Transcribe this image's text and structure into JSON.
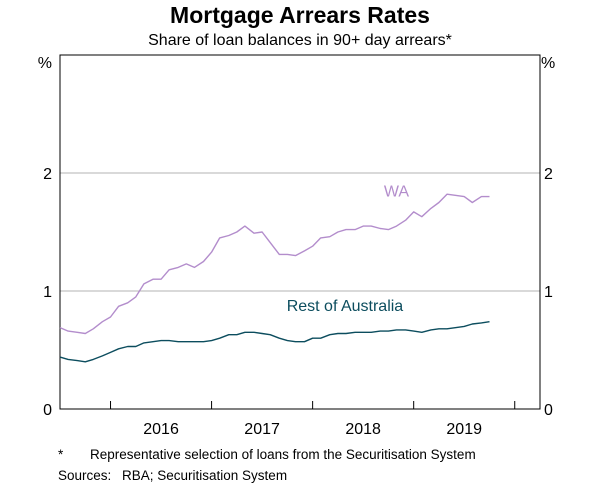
{
  "colors": {
    "wa": "#b38dcc",
    "rest": "#0c4d5e",
    "grid": "#b3b3b3",
    "axis": "#000000"
  },
  "footnote": {
    "marker": "*",
    "text": "Representative selection of loans from the Securitisation System"
  },
  "sources": {
    "label": "Sources:",
    "text": "RBA; Securitisation System"
  },
  "chart_data": {
    "type": "line",
    "title": "Mortgage Arrears Rates",
    "subtitle": "Share of loan balances in 90+ day arrears*",
    "ylabel_left": "%",
    "ylabel_right": "%",
    "ylim": [
      0,
      3
    ],
    "yticks": [
      0,
      1,
      2
    ],
    "ytick_labels": [
      "0",
      "1",
      "2"
    ],
    "xlim": [
      2015.0,
      2019.75
    ],
    "year_labels": [
      {
        "label": "2016",
        "center": 2016.0
      },
      {
        "label": "2017",
        "center": 2017.0
      },
      {
        "label": "2018",
        "center": 2018.0
      },
      {
        "label": "2019",
        "center": 2019.0
      }
    ],
    "xtick_boundaries": [
      2015.5,
      2016.5,
      2017.5,
      2018.5,
      2019.5
    ],
    "gridlines": [
      1,
      2
    ],
    "series": [
      {
        "name": "WA",
        "color": "#b38dcc",
        "x": [
          2015.0,
          2015.08,
          2015.17,
          2015.25,
          2015.33,
          2015.42,
          2015.5,
          2015.58,
          2015.67,
          2015.75,
          2015.83,
          2015.92,
          2016.0,
          2016.08,
          2016.17,
          2016.25,
          2016.33,
          2016.42,
          2016.5,
          2016.58,
          2016.67,
          2016.75,
          2016.83,
          2016.92,
          2017.0,
          2017.08,
          2017.17,
          2017.25,
          2017.33,
          2017.42,
          2017.5,
          2017.58,
          2017.67,
          2017.75,
          2017.83,
          2017.92,
          2018.0,
          2018.08,
          2018.17,
          2018.25,
          2018.33,
          2018.42,
          2018.5,
          2018.58,
          2018.67,
          2018.75,
          2018.83,
          2018.92,
          2019.0,
          2019.08,
          2019.17,
          2019.25
        ],
        "values": [
          0.69,
          0.66,
          0.65,
          0.64,
          0.68,
          0.74,
          0.78,
          0.87,
          0.9,
          0.95,
          1.06,
          1.1,
          1.1,
          1.18,
          1.2,
          1.23,
          1.2,
          1.25,
          1.33,
          1.45,
          1.47,
          1.5,
          1.55,
          1.49,
          1.5,
          1.41,
          1.31,
          1.31,
          1.3,
          1.34,
          1.38,
          1.45,
          1.46,
          1.5,
          1.52,
          1.52,
          1.55,
          1.55,
          1.53,
          1.52,
          1.55,
          1.6,
          1.67,
          1.63,
          1.7,
          1.75,
          1.82,
          1.81,
          1.8,
          1.75,
          1.8,
          1.8
        ]
      },
      {
        "name": "Rest of Australia",
        "color": "#0c4d5e",
        "x": [
          2015.0,
          2015.08,
          2015.17,
          2015.25,
          2015.33,
          2015.42,
          2015.5,
          2015.58,
          2015.67,
          2015.75,
          2015.83,
          2015.92,
          2016.0,
          2016.08,
          2016.17,
          2016.25,
          2016.33,
          2016.42,
          2016.5,
          2016.58,
          2016.67,
          2016.75,
          2016.83,
          2016.92,
          2017.0,
          2017.08,
          2017.17,
          2017.25,
          2017.33,
          2017.42,
          2017.5,
          2017.58,
          2017.67,
          2017.75,
          2017.83,
          2017.92,
          2018.0,
          2018.08,
          2018.17,
          2018.25,
          2018.33,
          2018.42,
          2018.5,
          2018.58,
          2018.67,
          2018.75,
          2018.83,
          2018.92,
          2019.0,
          2019.08,
          2019.17,
          2019.25
        ],
        "values": [
          0.44,
          0.42,
          0.41,
          0.4,
          0.42,
          0.45,
          0.48,
          0.51,
          0.53,
          0.53,
          0.56,
          0.57,
          0.58,
          0.58,
          0.57,
          0.57,
          0.57,
          0.57,
          0.58,
          0.6,
          0.63,
          0.63,
          0.65,
          0.65,
          0.64,
          0.63,
          0.6,
          0.58,
          0.57,
          0.57,
          0.6,
          0.6,
          0.63,
          0.64,
          0.64,
          0.65,
          0.65,
          0.65,
          0.66,
          0.66,
          0.67,
          0.67,
          0.66,
          0.65,
          0.67,
          0.68,
          0.68,
          0.69,
          0.7,
          0.72,
          0.73,
          0.74
        ]
      }
    ],
    "annotations": [
      {
        "text": "WA",
        "series": "WA",
        "x": 2018.33,
        "y": 1.8
      },
      {
        "text": "Rest of Australia",
        "series": "Rest of Australia",
        "x": 2017.82,
        "y": 0.83
      }
    ]
  }
}
